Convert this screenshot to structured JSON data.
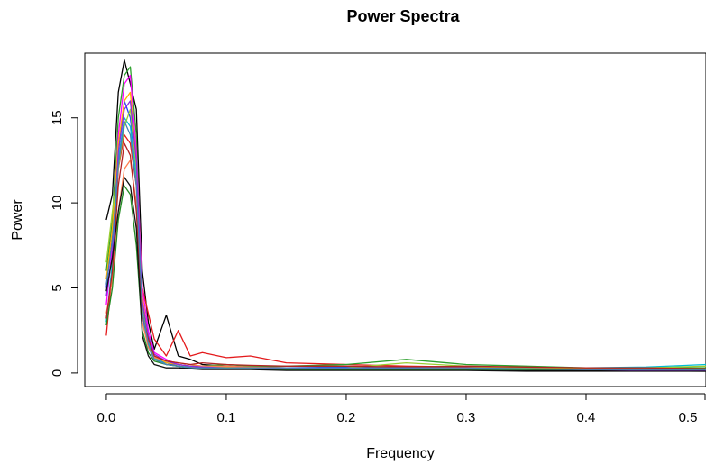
{
  "chart_data": {
    "type": "line",
    "title": "Power Spectra",
    "xlabel": "Frequency",
    "ylabel": "Power",
    "xlim": [
      -0.018,
      0.5
    ],
    "ylim": [
      -0.8,
      18.8
    ],
    "x_ticks": [
      0.0,
      0.1,
      0.2,
      0.3,
      0.4,
      0.5
    ],
    "x_tick_labels": [
      "0.0",
      "0.1",
      "0.2",
      "0.3",
      "0.4",
      "0.5"
    ],
    "y_ticks": [
      0,
      5,
      10,
      15
    ],
    "y_tick_labels": [
      "0",
      "5",
      "10",
      "15"
    ],
    "grid": false,
    "legend": "none",
    "x": [
      0.0,
      0.005,
      0.01,
      0.015,
      0.02,
      0.025,
      0.03,
      0.035,
      0.04,
      0.05,
      0.06,
      0.07,
      0.08,
      0.1,
      0.12,
      0.15,
      0.2,
      0.25,
      0.3,
      0.35,
      0.4,
      0.45,
      0.5
    ],
    "series": [
      {
        "color": "#000000",
        "values": [
          9.0,
          10.5,
          16.5,
          18.4,
          17.0,
          15.5,
          6.0,
          3.0,
          1.4,
          3.4,
          1.0,
          0.8,
          0.5,
          0.4,
          0.35,
          0.3,
          0.25,
          0.2,
          0.2,
          0.15,
          0.15,
          0.12,
          0.1
        ]
      },
      {
        "color": "#e41a1c",
        "values": [
          2.2,
          6.0,
          12.0,
          14.0,
          13.5,
          11.0,
          5.0,
          3.5,
          2.0,
          1.0,
          2.5,
          1.0,
          1.2,
          0.9,
          1.0,
          0.6,
          0.5,
          0.4,
          0.35,
          0.3,
          0.3,
          0.25,
          0.2
        ]
      },
      {
        "color": "#2ca02c",
        "values": [
          6.0,
          9.0,
          15.0,
          17.5,
          18.0,
          14.0,
          4.0,
          2.0,
          1.0,
          0.6,
          0.5,
          0.4,
          0.4,
          0.5,
          0.4,
          0.4,
          0.5,
          0.8,
          0.5,
          0.4,
          0.3,
          0.3,
          0.3
        ]
      },
      {
        "color": "#1f3fff",
        "values": [
          5.0,
          8.0,
          13.0,
          16.0,
          15.0,
          12.0,
          3.5,
          1.5,
          0.8,
          0.6,
          0.4,
          0.3,
          0.3,
          0.3,
          0.25,
          0.3,
          0.35,
          0.3,
          0.3,
          0.25,
          0.3,
          0.2,
          0.2
        ]
      },
      {
        "color": "#ff00ff",
        "values": [
          4.0,
          7.5,
          14.0,
          17.0,
          17.5,
          13.0,
          5.0,
          2.5,
          1.2,
          0.8,
          0.5,
          0.4,
          0.3,
          0.3,
          0.3,
          0.25,
          0.3,
          0.25,
          0.2,
          0.25,
          0.2,
          0.2,
          0.25
        ]
      },
      {
        "color": "#00bcd4",
        "values": [
          3.0,
          6.5,
          12.5,
          15.0,
          14.5,
          11.5,
          3.0,
          1.8,
          0.9,
          0.5,
          0.4,
          0.35,
          0.3,
          0.3,
          0.25,
          0.2,
          0.25,
          0.2,
          0.2,
          0.2,
          0.3,
          0.35,
          0.5
        ]
      },
      {
        "color": "#ffb000",
        "values": [
          5.5,
          8.5,
          13.5,
          16.0,
          16.5,
          12.5,
          4.5,
          2.0,
          1.0,
          0.6,
          0.5,
          0.4,
          0.3,
          0.35,
          0.3,
          0.3,
          0.3,
          0.3,
          0.3,
          0.3,
          0.25,
          0.2,
          0.2
        ]
      },
      {
        "color": "#9acd32",
        "values": [
          6.5,
          9.5,
          12.0,
          14.5,
          15.5,
          12.0,
          3.8,
          1.6,
          0.8,
          0.5,
          0.4,
          0.3,
          0.3,
          0.3,
          0.3,
          0.3,
          0.3,
          0.6,
          0.4,
          0.3,
          0.3,
          0.3,
          0.4
        ]
      },
      {
        "color": "#ff7f50",
        "values": [
          3.5,
          5.5,
          9.5,
          12.0,
          12.5,
          10.0,
          3.0,
          1.5,
          0.9,
          0.7,
          0.6,
          0.5,
          0.4,
          0.4,
          0.35,
          0.3,
          0.3,
          0.3,
          0.25,
          0.25,
          0.2,
          0.2,
          0.2
        ]
      },
      {
        "color": "#8a2be2",
        "values": [
          4.5,
          7.0,
          13.0,
          15.5,
          16.0,
          12.5,
          4.2,
          2.2,
          1.1,
          0.7,
          0.5,
          0.4,
          0.35,
          0.3,
          0.3,
          0.3,
          0.25,
          0.25,
          0.2,
          0.2,
          0.2,
          0.15,
          0.15
        ]
      },
      {
        "color": "#228b22",
        "values": [
          2.8,
          5.0,
          9.0,
          11.0,
          10.5,
          7.5,
          2.5,
          1.2,
          0.7,
          0.5,
          0.4,
          0.3,
          0.3,
          0.25,
          0.25,
          0.2,
          0.2,
          0.2,
          0.2,
          0.2,
          0.2,
          0.2,
          0.2
        ]
      },
      {
        "color": "#b22222",
        "values": [
          3.2,
          6.0,
          11.0,
          13.5,
          12.8,
          9.5,
          3.4,
          2.0,
          1.0,
          0.7,
          0.6,
          0.5,
          0.6,
          0.5,
          0.45,
          0.4,
          0.4,
          0.35,
          0.4,
          0.35,
          0.3,
          0.3,
          0.25
        ]
      },
      {
        "color": "#4682b4",
        "values": [
          5.2,
          7.8,
          12.2,
          14.8,
          14.0,
          11.0,
          3.6,
          1.7,
          0.8,
          0.5,
          0.4,
          0.3,
          0.3,
          0.3,
          0.3,
          0.3,
          0.3,
          0.3,
          0.3,
          0.25,
          0.2,
          0.2,
          0.2
        ]
      },
      {
        "color": "#111111",
        "values": [
          4.8,
          6.8,
          9.5,
          11.5,
          11.0,
          8.5,
          2.2,
          1.0,
          0.5,
          0.3,
          0.3,
          0.25,
          0.2,
          0.2,
          0.2,
          0.15,
          0.15,
          0.15,
          0.15,
          0.1,
          0.1,
          0.1,
          0.1
        ]
      }
    ]
  }
}
